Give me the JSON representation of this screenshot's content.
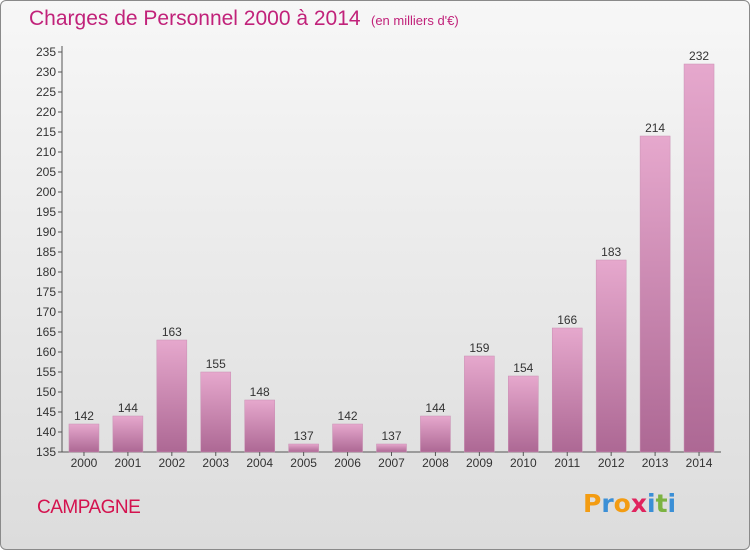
{
  "header": {
    "title": "Charges de Personnel 2000 à 2014",
    "unit": "(en milliers d'€)"
  },
  "footer": {
    "place": "CAMPAGNE",
    "logo_text": "Proxiti"
  },
  "colors": {
    "title": "#c1227a",
    "place": "#d4134f",
    "bar_top": "#e6a8cd",
    "bar_bottom": "#ad6894",
    "logo_letters": [
      "#f39c12",
      "#3b8fd6",
      "#f39c12",
      "#e0245e",
      "#3b8fd6",
      "#7cb342",
      "#3b8fd6"
    ]
  },
  "chart_data": {
    "type": "bar",
    "title": "Charges de Personnel 2000 à 2014",
    "subtitle": "(en milliers d'€)",
    "xlabel": "",
    "ylabel": "",
    "categories": [
      "2000",
      "2001",
      "2002",
      "2003",
      "2004",
      "2005",
      "2006",
      "2007",
      "2008",
      "2009",
      "2010",
      "2011",
      "2012",
      "2013",
      "2014"
    ],
    "values": [
      142,
      144,
      163,
      155,
      148,
      137,
      142,
      137,
      144,
      159,
      154,
      166,
      183,
      214,
      232
    ],
    "ylim": [
      135,
      235
    ],
    "ytick_step": 5,
    "grid": false,
    "legend": "none",
    "data_labels": true
  }
}
